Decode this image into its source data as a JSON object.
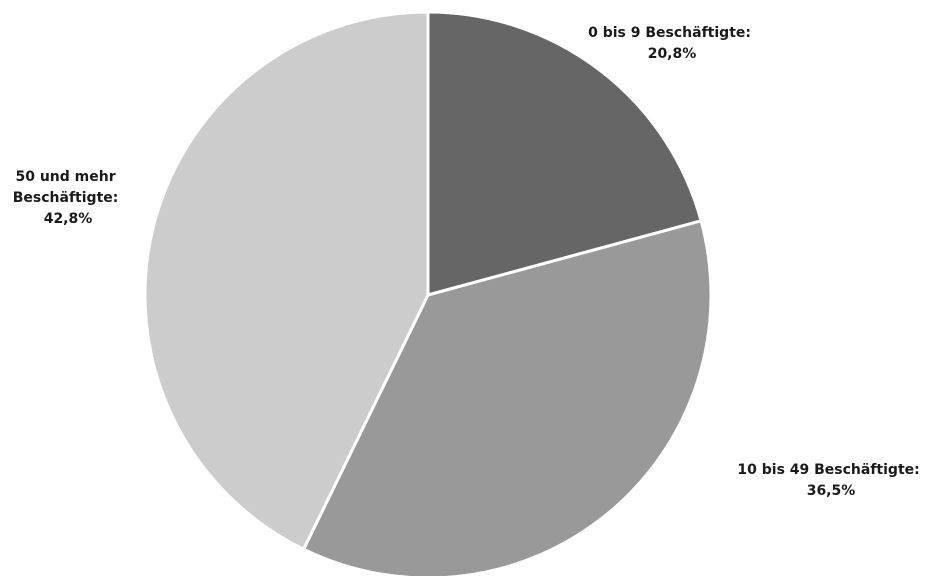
{
  "chart_data": {
    "type": "pie",
    "title": "",
    "slices": [
      {
        "label": "0 bis 9 Beschäftigte:",
        "display_value": "20,8%",
        "value": 20.8,
        "color": "#666666"
      },
      {
        "label": "10 bis 49 Beschäftigte:",
        "display_value": "36,5%",
        "value": 36.5,
        "color": "#999999"
      },
      {
        "label_lines": [
          "50 und mehr",
          "Beschäftigte:"
        ],
        "display_value": "42,8%",
        "value": 42.8,
        "color": "#cccccc"
      }
    ],
    "start_angle": "12 o'clock",
    "direction": "clockwise",
    "legend": "none (labels placed next to slices)"
  }
}
